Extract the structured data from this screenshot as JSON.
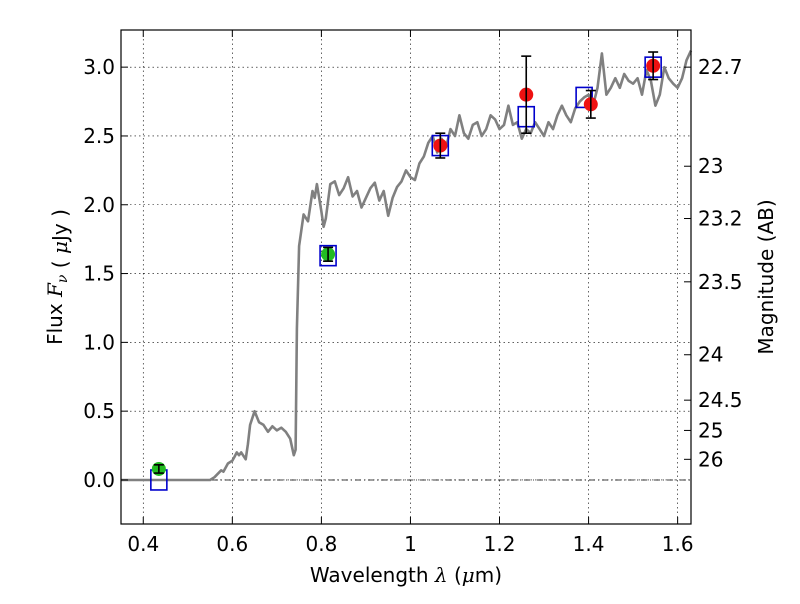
{
  "chart_data": {
    "type": "scatter",
    "xlabel": "Wavelength  λ (μm)",
    "ylabel": "Flux  F_ν  ( μJy )",
    "y2label": "Magnitude (AB)",
    "xlim": [
      0.35,
      1.63
    ],
    "ylim": [
      -0.32,
      3.27
    ],
    "grid": true,
    "x_ticks": [
      0.4,
      0.6,
      0.8,
      1.0,
      1.2,
      1.4,
      1.6
    ],
    "x_tick_labels": [
      "0.4",
      "0.6",
      "0.8",
      "1",
      "1.2",
      "1.4",
      "1.6"
    ],
    "y_ticks": [
      0.0,
      0.5,
      1.0,
      1.5,
      2.0,
      2.5,
      3.0
    ],
    "y_tick_labels": [
      "0.0",
      "0.5",
      "1.0",
      "1.5",
      "2.0",
      "2.5",
      "3.0"
    ],
    "y2_ticks": [
      {
        "label": "22.7",
        "flux": 3.0
      },
      {
        "label": "23",
        "flux": 2.28
      },
      {
        "label": "23.2",
        "flux": 1.9
      },
      {
        "label": "23.5",
        "flux": 1.44
      },
      {
        "label": "24",
        "flux": 0.91
      },
      {
        "label": "24.5",
        "flux": 0.58
      },
      {
        "label": "25",
        "flux": 0.36
      },
      {
        "label": "26",
        "flux": 0.15
      }
    ],
    "sed_model": {
      "color": "#808080",
      "x": [
        0.35,
        0.55,
        0.56,
        0.575,
        0.58,
        0.59,
        0.6,
        0.605,
        0.61,
        0.615,
        0.62,
        0.63,
        0.635,
        0.64,
        0.65,
        0.66,
        0.67,
        0.68,
        0.69,
        0.7,
        0.71,
        0.72,
        0.73,
        0.738,
        0.742,
        0.745,
        0.75,
        0.76,
        0.77,
        0.78,
        0.785,
        0.79,
        0.8,
        0.805,
        0.81,
        0.82,
        0.83,
        0.84,
        0.85,
        0.86,
        0.87,
        0.88,
        0.89,
        0.9,
        0.91,
        0.92,
        0.93,
        0.94,
        0.95,
        0.96,
        0.97,
        0.98,
        0.99,
        1.0,
        1.01,
        1.02,
        1.03,
        1.04,
        1.05,
        1.06,
        1.07,
        1.08,
        1.09,
        1.1,
        1.11,
        1.12,
        1.13,
        1.14,
        1.15,
        1.16,
        1.17,
        1.18,
        1.19,
        1.2,
        1.21,
        1.22,
        1.23,
        1.24,
        1.25,
        1.26,
        1.27,
        1.28,
        1.29,
        1.3,
        1.31,
        1.32,
        1.33,
        1.34,
        1.35,
        1.36,
        1.37,
        1.38,
        1.39,
        1.4,
        1.41,
        1.42,
        1.43,
        1.44,
        1.45,
        1.46,
        1.47,
        1.48,
        1.49,
        1.5,
        1.51,
        1.52,
        1.53,
        1.54,
        1.55,
        1.56,
        1.57,
        1.58,
        1.59,
        1.6,
        1.61,
        1.62,
        1.63
      ],
      "y": [
        0.0,
        0.0,
        0.02,
        0.07,
        0.06,
        0.12,
        0.14,
        0.17,
        0.2,
        0.18,
        0.2,
        0.15,
        0.26,
        0.4,
        0.5,
        0.42,
        0.4,
        0.35,
        0.39,
        0.36,
        0.38,
        0.35,
        0.3,
        0.18,
        0.22,
        1.1,
        1.7,
        1.93,
        1.88,
        2.1,
        2.05,
        2.15,
        1.95,
        1.84,
        1.9,
        2.15,
        2.17,
        2.07,
        2.12,
        2.2,
        2.06,
        2.1,
        1.98,
        2.05,
        2.12,
        2.16,
        2.03,
        2.1,
        1.92,
        2.05,
        2.13,
        2.17,
        2.25,
        2.2,
        2.18,
        2.3,
        2.35,
        2.45,
        2.5,
        2.38,
        2.48,
        2.42,
        2.55,
        2.5,
        2.65,
        2.52,
        2.48,
        2.58,
        2.6,
        2.5,
        2.55,
        2.65,
        2.62,
        2.55,
        2.58,
        2.72,
        2.58,
        2.6,
        2.48,
        2.55,
        2.52,
        2.6,
        2.55,
        2.5,
        2.6,
        2.55,
        2.65,
        2.72,
        2.65,
        2.6,
        2.7,
        2.75,
        2.78,
        2.8,
        2.72,
        2.85,
        3.1,
        2.8,
        2.85,
        2.92,
        2.85,
        2.95,
        2.9,
        2.88,
        2.92,
        2.8,
        2.98,
        2.9,
        2.72,
        2.8,
        3.0,
        2.92,
        2.88,
        2.85,
        2.92,
        3.05,
        3.12
      ]
    },
    "series": [
      {
        "marker": "open-square",
        "color": "#0000cc",
        "x": [
          0.435,
          0.815,
          1.067,
          1.26,
          1.39,
          1.545
        ],
        "y": [
          0.0,
          1.63,
          2.43,
          2.64,
          2.78,
          3.0
        ]
      },
      {
        "marker": "filled-circle",
        "color": "#22bb22",
        "x": [
          0.435,
          0.815
        ],
        "y": [
          0.08,
          1.64
        ],
        "err": [
          0.03,
          0.05
        ]
      },
      {
        "marker": "filled-circle",
        "color": "#ee1111",
        "x": [
          1.067,
          1.26,
          1.405,
          1.545
        ],
        "y": [
          2.43,
          2.8,
          2.73,
          3.01
        ],
        "err": [
          0.09,
          0.28,
          0.1,
          0.1
        ]
      }
    ]
  }
}
